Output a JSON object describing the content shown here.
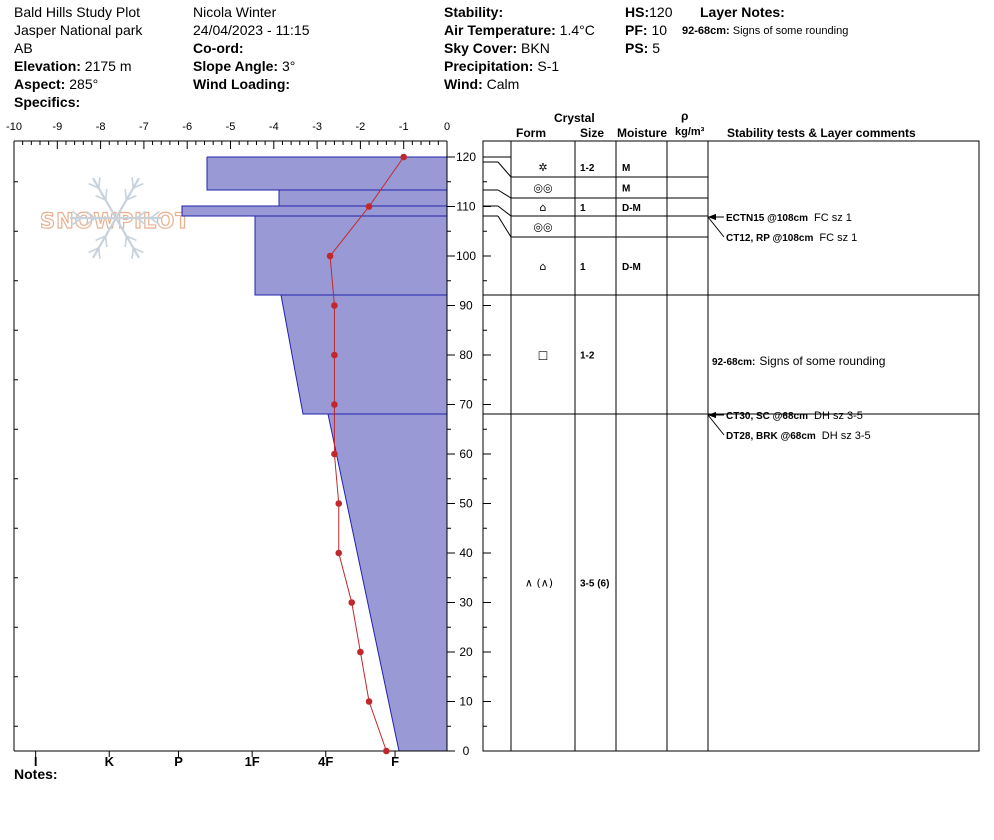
{
  "header": {
    "col1": {
      "site": "Bald Hills Study Plot",
      "area": "Jasper National park",
      "region": "AB",
      "elevation_label": "Elevation:",
      "elevation_value": "2175 m",
      "aspect_label": "Aspect:",
      "aspect_value": "285°",
      "specifics_label": "Specifics:"
    },
    "col2": {
      "observer": "Nicola Winter",
      "datetime": "24/04/2023 - 11:15",
      "coord_label": "Co-ord:",
      "slope_label": "Slope Angle:",
      "slope_value": "3°",
      "wind_loading_label": "Wind Loading:"
    },
    "col3": {
      "stability_label": "Stability:",
      "air_temp_label": "Air Temperature:",
      "air_temp_value": "1.4°C",
      "sky_label": "Sky Cover:",
      "sky_value": "BKN",
      "precip_label": "Precipitation:",
      "precip_value": "S-1",
      "wind_label": "Wind:",
      "wind_value": "Calm"
    },
    "col4": {
      "hs_label": "HS:",
      "hs_value": "120",
      "pf_label": "PF:",
      "pf_value": "10",
      "ps_label": "PS:",
      "ps_value": "5"
    },
    "layer_notes_label": "Layer Notes:",
    "layer_note_range": "92-68cm:",
    "layer_note_text": "Signs of some rounding"
  },
  "notes_label": "Notes:",
  "logo_text": "SNOWPILOT",
  "table_headers": {
    "crystal": "Crystal",
    "form": "Form",
    "size": "Size",
    "moisture": "Moisture",
    "rho": "ρ",
    "density_unit": "kg/m³",
    "stability": "Stability tests & Layer comments"
  },
  "colors": {
    "hardness_fill": "#9999d6",
    "hardness_stroke": "#2222aa",
    "temp_line": "#c0282b",
    "logo": "#c6d2dc",
    "logo_accent": "#e8b090"
  },
  "chart_data": {
    "type": "snow-profile",
    "temp_axis": {
      "ticks": [
        "-10",
        "-9",
        "-8",
        "-7",
        "-6",
        "-5",
        "-4",
        "-3",
        "-2",
        "-1",
        "0"
      ],
      "range": [
        -10,
        0
      ]
    },
    "height_axis": {
      "ticks": [
        "120",
        "110",
        "100",
        "90",
        "80",
        "70",
        "60",
        "50",
        "40",
        "30",
        "20",
        "10",
        "0"
      ],
      "range": [
        0,
        120
      ]
    },
    "hardness_axis": {
      "labels": [
        "I",
        "K",
        "P",
        "1F",
        "4F",
        "F"
      ],
      "positions": [
        -9.5,
        -7.8,
        -6.2,
        -4.5,
        -2.8,
        -1.2
      ]
    },
    "temperature_profile": [
      {
        "depth": 120,
        "temp": -1.0
      },
      {
        "depth": 110,
        "temp": -1.8
      },
      {
        "depth": 100,
        "temp": -2.7
      },
      {
        "depth": 90,
        "temp": -2.6
      },
      {
        "depth": 80,
        "temp": -2.6
      },
      {
        "depth": 70,
        "temp": -2.6
      },
      {
        "depth": 60,
        "temp": -2.6
      },
      {
        "depth": 50,
        "temp": -2.5
      },
      {
        "depth": 40,
        "temp": -2.5
      },
      {
        "depth": 30,
        "temp": -2.2
      },
      {
        "depth": 20,
        "temp": -2.0
      },
      {
        "depth": 10,
        "temp": -1.8
      },
      {
        "depth": 0,
        "temp": -1.4
      }
    ],
    "hardness_profile": [
      {
        "top": 120,
        "bottom": 113,
        "hardness": "P"
      },
      {
        "top": 113,
        "bottom": 110,
        "hardness": "1F"
      },
      {
        "top": 110,
        "bottom": 108,
        "hardness": "K"
      },
      {
        "top": 108,
        "bottom": 92,
        "hardness": "1F"
      },
      {
        "top": 92,
        "bottom": 68,
        "hardness": "4F-1F"
      },
      {
        "top": 68,
        "bottom": 0,
        "hardness": "F-4F"
      }
    ],
    "layers": [
      {
        "top": 120,
        "bottom": 116,
        "form": "✲",
        "size": "1-2",
        "moisture": "M"
      },
      {
        "top": 116,
        "bottom": 112,
        "form": "◎◎",
        "size": "",
        "moisture": "M"
      },
      {
        "top": 112,
        "bottom": 108,
        "form": "⌂",
        "size": "1",
        "moisture": "D-M"
      },
      {
        "top": 108,
        "bottom": 104,
        "form": "◎◎",
        "size": "",
        "moisture": ""
      },
      {
        "top": 104,
        "bottom": 92,
        "form": "⌂",
        "size": "1",
        "moisture": "D-M"
      },
      {
        "top": 92,
        "bottom": 68,
        "form": "□",
        "size": "1-2",
        "moisture": ""
      },
      {
        "top": 68,
        "bottom": 0,
        "form": "∧ (∧)",
        "size": "3-5 (6)",
        "moisture": ""
      }
    ],
    "stability_tests": [
      {
        "depth": 108,
        "code": "ECTN15 @108cm",
        "comment": "FC sz 1"
      },
      {
        "depth": 108,
        "code": "CT12, RP @108cm",
        "comment": "FC sz 1"
      },
      {
        "depth": 68,
        "code": "CT30, SC @68cm",
        "comment": "DH sz 3-5"
      },
      {
        "depth": 68,
        "code": "DT28, BRK @68cm",
        "comment": "DH sz 3-5"
      }
    ],
    "layer_comments": [
      {
        "range": "92-68cm:",
        "text": "Signs of some rounding"
      }
    ]
  }
}
